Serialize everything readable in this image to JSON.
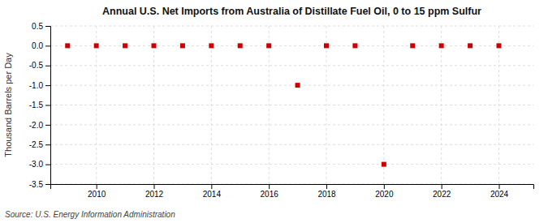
{
  "chart_data": {
    "type": "scatter",
    "title": "Annual U.S. Net Imports from Australia of Distillate Fuel Oil, 0 to 15 ppm Sulfur",
    "y_label": "Thousand Barrels per Day",
    "source": "Source: U.S. Energy Information Administration",
    "x": [
      2009,
      2010,
      2011,
      2012,
      2013,
      2014,
      2015,
      2016,
      2017,
      2018,
      2019,
      2020,
      2021,
      2022,
      2023,
      2024
    ],
    "values": [
      0,
      0,
      0,
      0,
      0,
      0,
      0,
      0,
      -1.0,
      0,
      0,
      -3.0,
      0,
      0,
      0,
      0
    ],
    "color": "#cc0000",
    "marker": "square",
    "grid": true,
    "xlim": [
      2008.4,
      2025.2
    ],
    "xticks": [
      2010,
      2012,
      2014,
      2016,
      2018,
      2020,
      2022,
      2024
    ],
    "ylim": [
      -3.5,
      0.5
    ],
    "yticks": [
      0.5,
      {
        "value": 0.0,
        "label": "0.0"
      },
      -0.5,
      {
        "value": -1.0,
        "label": "-1.0"
      },
      -1.5,
      {
        "value": -2.0,
        "label": "-2.0"
      },
      -2.5,
      {
        "value": -3.0,
        "label": "-3.0"
      },
      -3.5
    ]
  }
}
